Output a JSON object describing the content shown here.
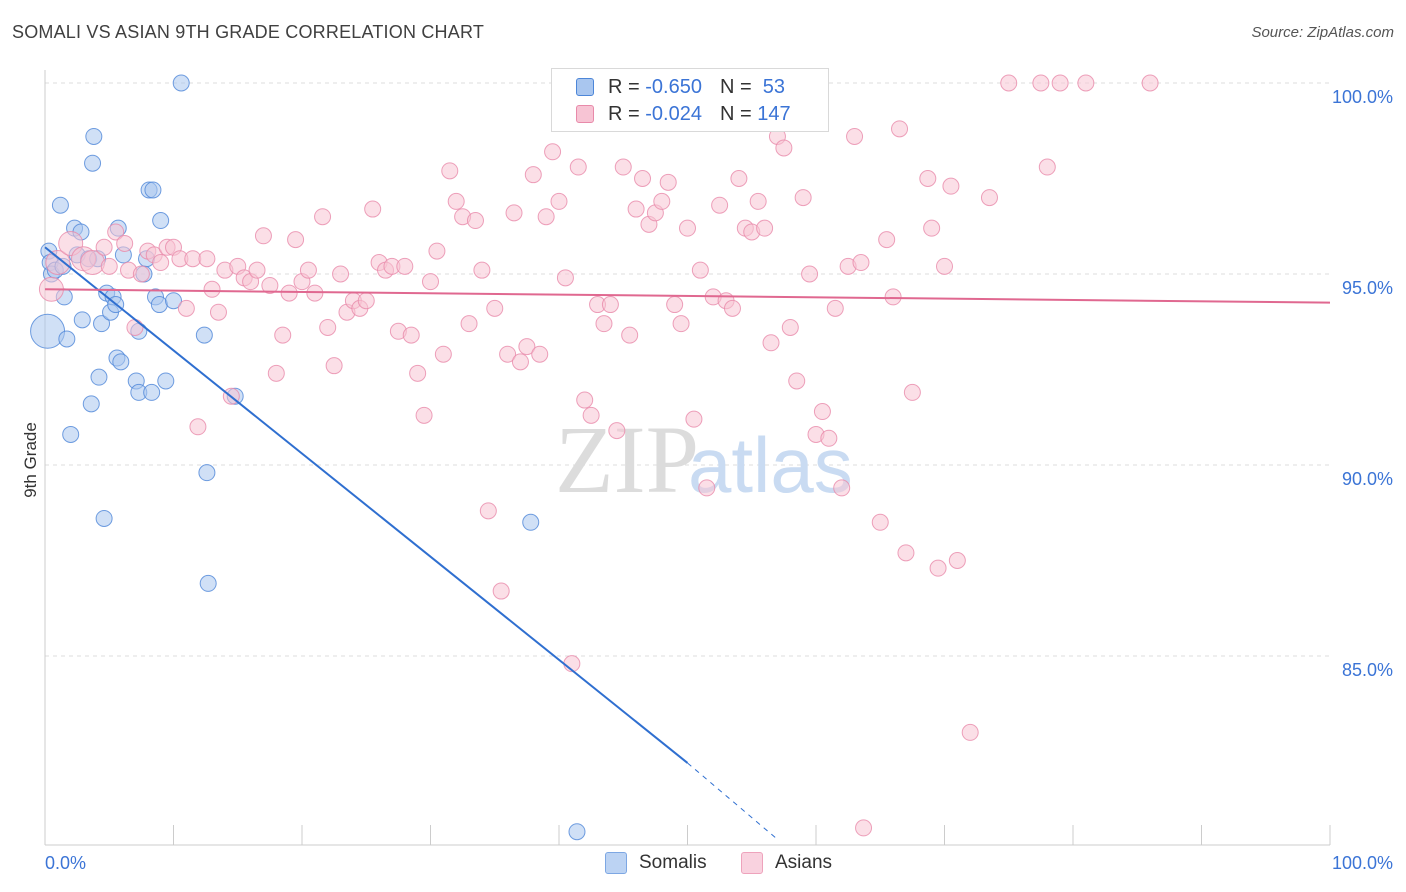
{
  "title": "SOMALI VS ASIAN 9TH GRADE CORRELATION CHART",
  "source": "Source: ZipAtlas.com",
  "watermark": {
    "zip": "ZIP",
    "atlas": "atlas"
  },
  "legend_top": {
    "rows": [
      {
        "r_label": "R =",
        "r_value": "-0.650",
        "n_label": "N =",
        "n_value": "53"
      },
      {
        "r_label": "R =",
        "r_value": "-0.024",
        "n_label": "N =",
        "n_value": "147"
      }
    ]
  },
  "legend_bottom": {
    "items": [
      "Somalis",
      "Asians"
    ]
  },
  "colors": {
    "somali_fill": "#a9c6ef",
    "somali_stroke": "#4d86d8",
    "somali_line": "#2f6fd0",
    "asian_fill": "#f7c4d4",
    "asian_stroke": "#e88aaa",
    "asian_line": "#e06890",
    "axis_text": "#3b74d6",
    "grid": "#dddddd"
  },
  "chart_data": {
    "type": "scatter",
    "title": "SOMALI VS ASIAN 9TH GRADE CORRELATION CHART",
    "xlabel": "",
    "ylabel": "9th Grade",
    "xlim": [
      0,
      100
    ],
    "ylim": [
      80.0,
      100.5
    ],
    "y_ticks": [
      85.0,
      90.0,
      95.0,
      100.0
    ],
    "y_tick_labels": [
      "85.0%",
      "90.0%",
      "95.0%",
      "100.0%"
    ],
    "x_tick_labels": [
      "0.0%",
      "100.0%"
    ],
    "grid": true,
    "legend": "top-center",
    "series": [
      {
        "name": "Somalis",
        "R": -0.65,
        "N": 53,
        "trend": {
          "x1": 0,
          "y1": 95.7,
          "x2": 50,
          "y2": 82.2,
          "dashed_to_x": 57,
          "dashed_to_y": 80.2
        },
        "points": [
          {
            "x": 0.2,
            "y": 93.5,
            "big": true
          },
          {
            "x": 0.3,
            "y": 95.6
          },
          {
            "x": 0.4,
            "y": 95.3
          },
          {
            "x": 0.5,
            "y": 95.0
          },
          {
            "x": 0.8,
            "y": 95.1
          },
          {
            "x": 1.2,
            "y": 96.8
          },
          {
            "x": 1.4,
            "y": 95.2
          },
          {
            "x": 1.5,
            "y": 94.4
          },
          {
            "x": 1.7,
            "y": 93.3
          },
          {
            "x": 2.0,
            "y": 90.8
          },
          {
            "x": 2.3,
            "y": 96.2
          },
          {
            "x": 2.5,
            "y": 95.5
          },
          {
            "x": 2.8,
            "y": 96.1
          },
          {
            "x": 2.9,
            "y": 93.8
          },
          {
            "x": 3.4,
            "y": 95.4
          },
          {
            "x": 3.6,
            "y": 91.6
          },
          {
            "x": 3.7,
            "y": 97.9
          },
          {
            "x": 3.8,
            "y": 98.6
          },
          {
            "x": 4.1,
            "y": 95.4
          },
          {
            "x": 4.2,
            "y": 92.3
          },
          {
            "x": 4.4,
            "y": 93.7
          },
          {
            "x": 4.6,
            "y": 88.6
          },
          {
            "x": 4.8,
            "y": 94.5
          },
          {
            "x": 5.1,
            "y": 94.0
          },
          {
            "x": 5.3,
            "y": 94.4
          },
          {
            "x": 5.5,
            "y": 94.2
          },
          {
            "x": 5.6,
            "y": 92.8
          },
          {
            "x": 5.7,
            "y": 96.2
          },
          {
            "x": 5.9,
            "y": 92.7
          },
          {
            "x": 6.1,
            "y": 95.5
          },
          {
            "x": 7.1,
            "y": 92.2
          },
          {
            "x": 7.3,
            "y": 93.5
          },
          {
            "x": 7.3,
            "y": 91.9
          },
          {
            "x": 7.7,
            "y": 95.0
          },
          {
            "x": 7.9,
            "y": 95.4
          },
          {
            "x": 8.1,
            "y": 97.2
          },
          {
            "x": 8.3,
            "y": 91.9
          },
          {
            "x": 8.4,
            "y": 97.2
          },
          {
            "x": 8.6,
            "y": 94.4
          },
          {
            "x": 8.9,
            "y": 94.2
          },
          {
            "x": 9.0,
            "y": 96.4
          },
          {
            "x": 9.4,
            "y": 92.2
          },
          {
            "x": 10.0,
            "y": 94.3
          },
          {
            "x": 10.6,
            "y": 100.0
          },
          {
            "x": 12.4,
            "y": 93.4
          },
          {
            "x": 12.6,
            "y": 89.8
          },
          {
            "x": 12.7,
            "y": 86.9
          },
          {
            "x": 14.8,
            "y": 91.8
          },
          {
            "x": 37.8,
            "y": 88.5
          },
          {
            "x": 41.4,
            "y": 80.4
          }
        ]
      },
      {
        "name": "Asians",
        "R": -0.024,
        "N": 147,
        "trend": {
          "x1": 0,
          "y1": 94.6,
          "x2": 100,
          "y2": 94.25
        },
        "points": [
          {
            "x": 0.5,
            "y": 94.6,
            "big": true
          },
          {
            "x": 1.0,
            "y": 95.3,
            "big": true
          },
          {
            "x": 2.0,
            "y": 95.8,
            "big": true
          },
          {
            "x": 3.0,
            "y": 95.4,
            "big": true
          },
          {
            "x": 3.7,
            "y": 95.3,
            "big": true
          },
          {
            "x": 4.6,
            "y": 95.7
          },
          {
            "x": 5.0,
            "y": 95.2
          },
          {
            "x": 5.5,
            "y": 96.1
          },
          {
            "x": 6.2,
            "y": 95.8
          },
          {
            "x": 6.5,
            "y": 95.1
          },
          {
            "x": 7.0,
            "y": 93.6
          },
          {
            "x": 7.5,
            "y": 95.0
          },
          {
            "x": 8.0,
            "y": 95.6
          },
          {
            "x": 8.5,
            "y": 95.5
          },
          {
            "x": 9.0,
            "y": 95.3
          },
          {
            "x": 9.5,
            "y": 95.7
          },
          {
            "x": 10.0,
            "y": 95.7
          },
          {
            "x": 10.5,
            "y": 95.4
          },
          {
            "x": 11.0,
            "y": 94.1
          },
          {
            "x": 11.5,
            "y": 95.4
          },
          {
            "x": 11.9,
            "y": 91.0
          },
          {
            "x": 12.6,
            "y": 95.4
          },
          {
            "x": 13.0,
            "y": 94.6
          },
          {
            "x": 13.5,
            "y": 94.0
          },
          {
            "x": 14.0,
            "y": 95.1
          },
          {
            "x": 14.5,
            "y": 91.8
          },
          {
            "x": 15.0,
            "y": 95.2
          },
          {
            "x": 15.5,
            "y": 94.9
          },
          {
            "x": 16.0,
            "y": 94.8
          },
          {
            "x": 16.5,
            "y": 95.1
          },
          {
            "x": 17.0,
            "y": 96.0
          },
          {
            "x": 17.5,
            "y": 94.7
          },
          {
            "x": 18.0,
            "y": 92.4
          },
          {
            "x": 18.5,
            "y": 93.4
          },
          {
            "x": 19.0,
            "y": 94.5
          },
          {
            "x": 19.5,
            "y": 95.9
          },
          {
            "x": 20.0,
            "y": 94.8
          },
          {
            "x": 20.5,
            "y": 95.1
          },
          {
            "x": 21.0,
            "y": 94.5
          },
          {
            "x": 21.6,
            "y": 96.5
          },
          {
            "x": 22.0,
            "y": 93.6
          },
          {
            "x": 22.5,
            "y": 92.6
          },
          {
            "x": 23.0,
            "y": 95.0
          },
          {
            "x": 23.5,
            "y": 94.0
          },
          {
            "x": 24.0,
            "y": 94.3
          },
          {
            "x": 24.5,
            "y": 94.1
          },
          {
            "x": 25.0,
            "y": 94.3
          },
          {
            "x": 25.5,
            "y": 96.7
          },
          {
            "x": 26.0,
            "y": 95.3
          },
          {
            "x": 26.5,
            "y": 95.1
          },
          {
            "x": 27.0,
            "y": 95.2
          },
          {
            "x": 27.5,
            "y": 93.5
          },
          {
            "x": 28.0,
            "y": 95.2
          },
          {
            "x": 28.5,
            "y": 93.4
          },
          {
            "x": 29.0,
            "y": 92.4
          },
          {
            "x": 29.5,
            "y": 91.3
          },
          {
            "x": 30.0,
            "y": 94.8
          },
          {
            "x": 30.5,
            "y": 95.6
          },
          {
            "x": 31.0,
            "y": 92.9
          },
          {
            "x": 31.5,
            "y": 97.7
          },
          {
            "x": 32.0,
            "y": 96.9
          },
          {
            "x": 32.5,
            "y": 96.5
          },
          {
            "x": 33.0,
            "y": 93.7
          },
          {
            "x": 33.5,
            "y": 96.4
          },
          {
            "x": 34.0,
            "y": 95.1
          },
          {
            "x": 34.5,
            "y": 88.8
          },
          {
            "x": 35.0,
            "y": 94.1
          },
          {
            "x": 35.5,
            "y": 86.7
          },
          {
            "x": 36.0,
            "y": 92.9
          },
          {
            "x": 36.5,
            "y": 96.6
          },
          {
            "x": 37.0,
            "y": 92.7
          },
          {
            "x": 37.5,
            "y": 93.1
          },
          {
            "x": 38.0,
            "y": 97.6
          },
          {
            "x": 38.5,
            "y": 92.9
          },
          {
            "x": 39.0,
            "y": 96.5
          },
          {
            "x": 39.5,
            "y": 98.2
          },
          {
            "x": 40.0,
            "y": 96.9
          },
          {
            "x": 40.5,
            "y": 94.9
          },
          {
            "x": 41.0,
            "y": 84.8
          },
          {
            "x": 41.5,
            "y": 97.8
          },
          {
            "x": 42.0,
            "y": 91.7
          },
          {
            "x": 42.5,
            "y": 91.3
          },
          {
            "x": 43.0,
            "y": 94.2
          },
          {
            "x": 43.5,
            "y": 93.7
          },
          {
            "x": 44.0,
            "y": 94.2
          },
          {
            "x": 44.5,
            "y": 90.9
          },
          {
            "x": 45.0,
            "y": 97.8
          },
          {
            "x": 45.5,
            "y": 93.4
          },
          {
            "x": 46.0,
            "y": 96.7
          },
          {
            "x": 46.5,
            "y": 97.5
          },
          {
            "x": 47.0,
            "y": 96.3
          },
          {
            "x": 47.5,
            "y": 96.6
          },
          {
            "x": 48.0,
            "y": 96.9
          },
          {
            "x": 48.5,
            "y": 97.4
          },
          {
            "x": 49.0,
            "y": 94.2
          },
          {
            "x": 49.5,
            "y": 93.7
          },
          {
            "x": 50.0,
            "y": 96.2
          },
          {
            "x": 50.5,
            "y": 91.2
          },
          {
            "x": 51.0,
            "y": 95.1
          },
          {
            "x": 51.5,
            "y": 89.4
          },
          {
            "x": 52.0,
            "y": 94.4
          },
          {
            "x": 52.5,
            "y": 96.8
          },
          {
            "x": 53.0,
            "y": 94.3
          },
          {
            "x": 53.5,
            "y": 94.1
          },
          {
            "x": 54.0,
            "y": 97.5
          },
          {
            "x": 54.5,
            "y": 96.2
          },
          {
            "x": 55.0,
            "y": 96.1
          },
          {
            "x": 55.5,
            "y": 96.9
          },
          {
            "x": 56.0,
            "y": 96.2
          },
          {
            "x": 56.5,
            "y": 93.2
          },
          {
            "x": 57.0,
            "y": 98.6
          },
          {
            "x": 57.5,
            "y": 98.3
          },
          {
            "x": 58.0,
            "y": 93.6
          },
          {
            "x": 58.5,
            "y": 92.2
          },
          {
            "x": 59.0,
            "y": 97.0
          },
          {
            "x": 59.5,
            "y": 95.0
          },
          {
            "x": 60.0,
            "y": 90.8
          },
          {
            "x": 60.5,
            "y": 91.4
          },
          {
            "x": 61.0,
            "y": 90.7
          },
          {
            "x": 61.5,
            "y": 94.1
          },
          {
            "x": 62.0,
            "y": 89.4
          },
          {
            "x": 62.5,
            "y": 95.2
          },
          {
            "x": 63.0,
            "y": 98.6
          },
          {
            "x": 63.5,
            "y": 95.3
          },
          {
            "x": 65.0,
            "y": 88.5
          },
          {
            "x": 65.5,
            "y": 95.9
          },
          {
            "x": 66.0,
            "y": 94.4
          },
          {
            "x": 66.5,
            "y": 98.8
          },
          {
            "x": 67.0,
            "y": 87.7
          },
          {
            "x": 67.5,
            "y": 91.9
          },
          {
            "x": 68.7,
            "y": 97.5
          },
          {
            "x": 69.0,
            "y": 96.2
          },
          {
            "x": 69.5,
            "y": 87.3
          },
          {
            "x": 70.0,
            "y": 95.2
          },
          {
            "x": 70.5,
            "y": 97.3
          },
          {
            "x": 71.0,
            "y": 87.5
          },
          {
            "x": 72.0,
            "y": 83.0
          },
          {
            "x": 73.5,
            "y": 97.0
          },
          {
            "x": 75.0,
            "y": 100.0
          },
          {
            "x": 77.5,
            "y": 100.0
          },
          {
            "x": 78.0,
            "y": 97.8
          },
          {
            "x": 79.0,
            "y": 100.0
          },
          {
            "x": 81.0,
            "y": 100.0
          },
          {
            "x": 86.0,
            "y": 100.0
          },
          {
            "x": 63.7,
            "y": 80.5
          }
        ]
      }
    ]
  }
}
